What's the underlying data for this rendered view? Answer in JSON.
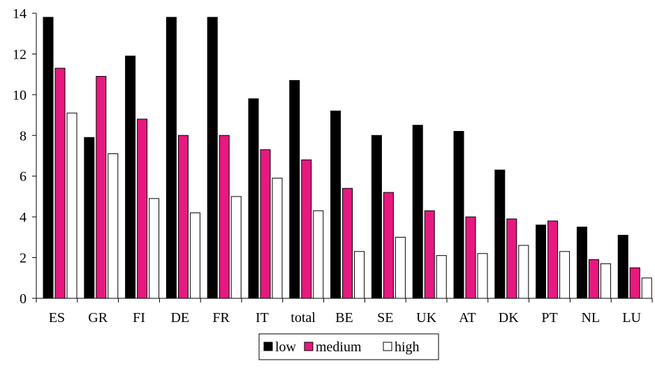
{
  "chart_data": {
    "type": "bar",
    "title": "",
    "xlabel": "",
    "ylabel": "",
    "ylim": [
      0,
      14
    ],
    "yticks": [
      0,
      2,
      4,
      6,
      8,
      10,
      12,
      14
    ],
    "grid": false,
    "legend_position": "bottom-center",
    "categories": [
      "ES",
      "GR",
      "FI",
      "DE",
      "FR",
      "IT",
      "total",
      "BE",
      "SE",
      "UK",
      "AT",
      "DK",
      "PT",
      "NL",
      "LU"
    ],
    "series": [
      {
        "name": "low",
        "color": "#000000",
        "values": [
          13.8,
          7.9,
          11.9,
          13.8,
          13.8,
          9.8,
          10.7,
          9.2,
          8.0,
          8.5,
          8.2,
          6.3,
          3.6,
          3.5,
          3.1
        ]
      },
      {
        "name": "medium",
        "color": "#e6197f",
        "values": [
          11.3,
          10.9,
          8.8,
          8.0,
          8.0,
          7.3,
          6.8,
          5.4,
          5.2,
          4.3,
          4.0,
          3.9,
          3.8,
          1.9,
          1.5
        ]
      },
      {
        "name": "high",
        "color": "#ffffff",
        "values": [
          9.1,
          7.1,
          4.9,
          4.2,
          5.0,
          5.9,
          4.3,
          2.3,
          3.0,
          2.1,
          2.2,
          2.6,
          2.3,
          1.7,
          1.0
        ]
      }
    ]
  }
}
